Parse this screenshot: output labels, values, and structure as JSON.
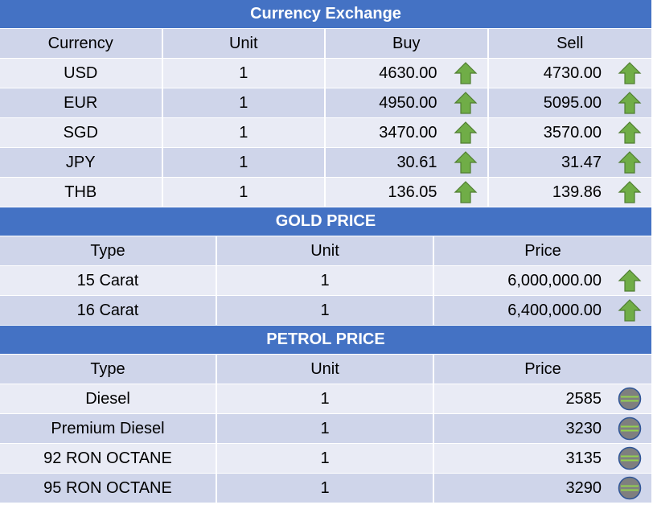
{
  "currency": {
    "title": "Currency Exchange",
    "headers": [
      "Currency",
      "Unit",
      "Buy",
      "Sell"
    ],
    "rows": [
      {
        "currency": "USD",
        "unit": "1",
        "buy": "4630.00",
        "sell": "4730.00"
      },
      {
        "currency": "EUR",
        "unit": "1",
        "buy": "4950.00",
        "sell": "5095.00"
      },
      {
        "currency": "SGD",
        "unit": "1",
        "buy": "3470.00",
        "sell": "3570.00"
      },
      {
        "currency": "JPY",
        "unit": "1",
        "buy": "30.61",
        "sell": "31.47"
      },
      {
        "currency": "THB",
        "unit": "1",
        "buy": "136.05",
        "sell": "139.86"
      }
    ]
  },
  "gold": {
    "title": "GOLD PRICE",
    "headers": [
      "Type",
      "Unit",
      "Price"
    ],
    "rows": [
      {
        "type": "15 Carat",
        "unit": "1",
        "price": "6,000,000.00"
      },
      {
        "type": "16 Carat",
        "unit": "1",
        "price": "6,400,000.00"
      }
    ]
  },
  "petrol": {
    "title": "PETROL PRICE",
    "headers": [
      "Type",
      "Unit",
      "Price"
    ],
    "rows": [
      {
        "type": "Diesel",
        "unit": "1",
        "price": "2585"
      },
      {
        "type": "Premium Diesel",
        "unit": "1",
        "price": "3230"
      },
      {
        "type": "92 RON OCTANE",
        "unit": "1",
        "price": "3135"
      },
      {
        "type": "95 RON OCTANE",
        "unit": "1",
        "price": "3290"
      }
    ]
  },
  "icons": {
    "up": "up-arrow-icon",
    "unchanged": "unchanged-icon"
  },
  "colors": {
    "band": "#4472C4",
    "row_dark": "#CFD5EA",
    "row_light": "#E9EBF5",
    "up_arrow": "#70AD47",
    "unchanged_fill": "#7F7F7F",
    "unchanged_line": "#92D050"
  }
}
